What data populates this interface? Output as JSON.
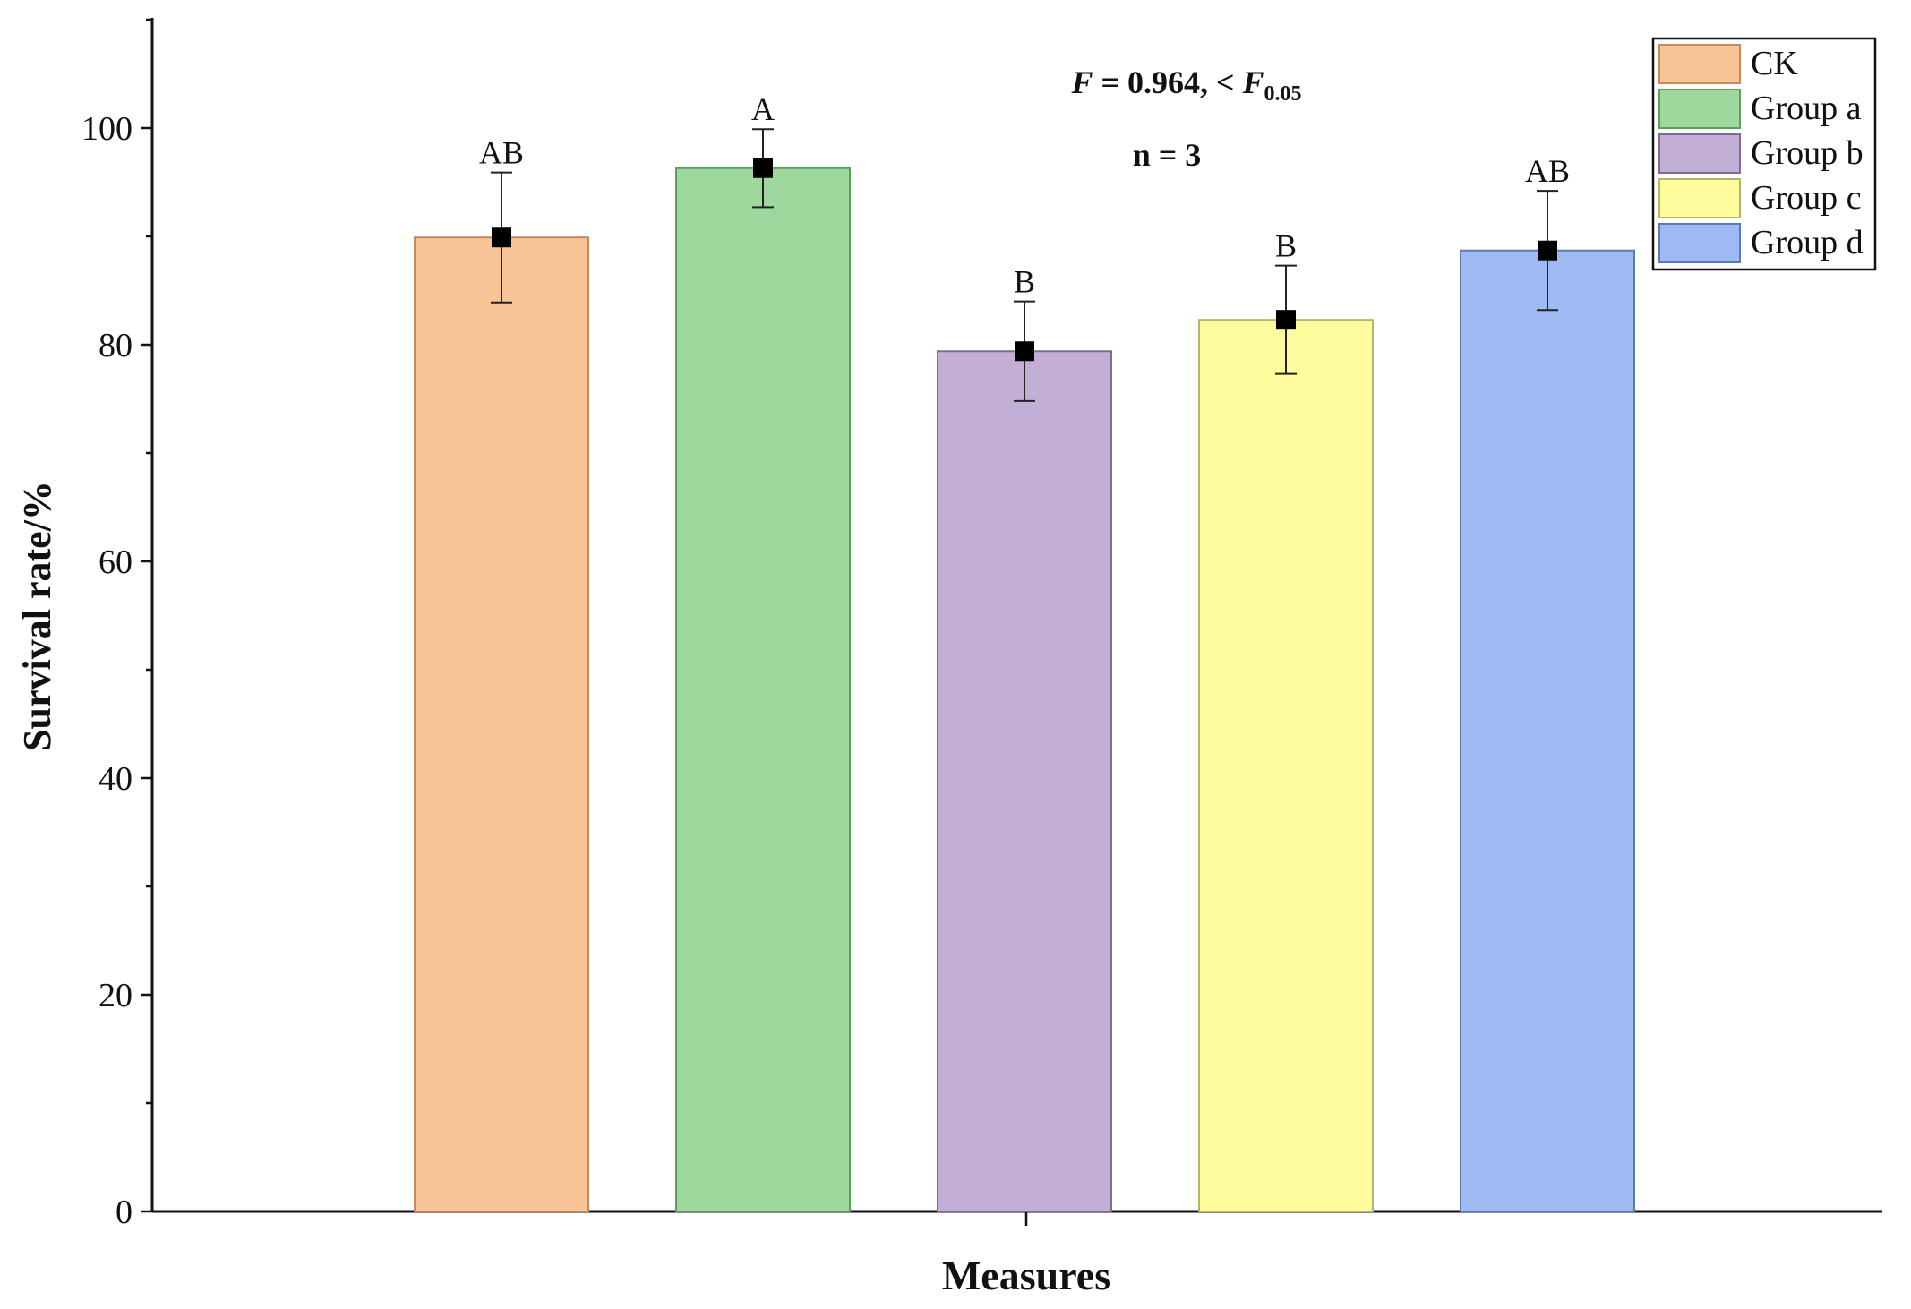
{
  "chart_data": {
    "type": "bar",
    "title": "",
    "xlabel": "Measures",
    "ylabel": "Survival rate/%",
    "ylim": [
      0,
      110
    ],
    "yticks": [
      0,
      20,
      40,
      60,
      80,
      100
    ],
    "xtick_count": 1,
    "grid": false,
    "legend_position": "top-right",
    "annotations": {
      "f_stat": {
        "f_symbol": "F",
        "text": " = 0.964, < ",
        "f_crit_symbol": "F",
        "f_crit_subscript": "0.05"
      },
      "n_text": "n = 3"
    },
    "series": [
      {
        "name": "CK",
        "value": 89.9,
        "error": 6.0,
        "sig": "AB",
        "color": "#f9c496",
        "edge": "#c58b5e"
      },
      {
        "name": "Group a",
        "value": 96.3,
        "error": 3.6,
        "sig": "A",
        "color": "#9fd89d",
        "edge": "#5e9e5c"
      },
      {
        "name": "Group b",
        "value": 79.4,
        "error": 4.6,
        "sig": "B",
        "color": "#c3afd6",
        "edge": "#7e6a92"
      },
      {
        "name": "Group c",
        "value": 82.3,
        "error": 5.0,
        "sig": "B",
        "color": "#fdfb9b",
        "edge": "#b6b36a"
      },
      {
        "name": "Group d",
        "value": 88.7,
        "error": 5.5,
        "sig": "AB",
        "color": "#9dbaf2",
        "edge": "#5d7ab3"
      }
    ]
  }
}
